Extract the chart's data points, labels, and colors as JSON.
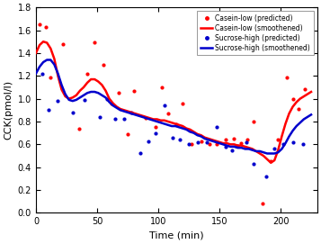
{
  "title": "",
  "xlabel": "Time (min)",
  "ylabel": "CCK(pmol/l)",
  "xlim": [
    0,
    230
  ],
  "ylim": [
    0,
    1.8
  ],
  "yticks": [
    0,
    0.2,
    0.4,
    0.6,
    0.8,
    1.0,
    1.2,
    1.4,
    1.6,
    1.8
  ],
  "xticks": [
    0,
    50,
    100,
    150,
    200
  ],
  "red_smooth_x": [
    0,
    3,
    6,
    9,
    12,
    15,
    18,
    21,
    24,
    27,
    30,
    33,
    36,
    39,
    42,
    45,
    48,
    51,
    54,
    57,
    60,
    63,
    66,
    69,
    72,
    75,
    78,
    81,
    84,
    87,
    90,
    93,
    96,
    99,
    102,
    105,
    108,
    111,
    114,
    117,
    120,
    123,
    126,
    129,
    132,
    135,
    138,
    141,
    144,
    147,
    150,
    153,
    156,
    159,
    162,
    165,
    168,
    171,
    174,
    177,
    180,
    183,
    186,
    189,
    192,
    195,
    198,
    201,
    204,
    207,
    210,
    213,
    216,
    219,
    222,
    225
  ],
  "red_smooth_y": [
    1.4,
    1.47,
    1.5,
    1.49,
    1.44,
    1.35,
    1.2,
    1.08,
    1.02,
    1.0,
    1.01,
    1.03,
    1.07,
    1.1,
    1.14,
    1.17,
    1.17,
    1.15,
    1.12,
    1.07,
    1.0,
    0.96,
    0.93,
    0.91,
    0.9,
    0.89,
    0.88,
    0.87,
    0.86,
    0.85,
    0.84,
    0.83,
    0.82,
    0.82,
    0.81,
    0.81,
    0.8,
    0.79,
    0.78,
    0.77,
    0.76,
    0.74,
    0.73,
    0.71,
    0.69,
    0.68,
    0.66,
    0.65,
    0.64,
    0.63,
    0.62,
    0.61,
    0.61,
    0.6,
    0.6,
    0.59,
    0.59,
    0.58,
    0.57,
    0.56,
    0.54,
    0.52,
    0.5,
    0.47,
    0.44,
    0.46,
    0.55,
    0.67,
    0.78,
    0.87,
    0.93,
    0.97,
    1.0,
    1.02,
    1.04,
    1.06
  ],
  "blue_smooth_x": [
    0,
    3,
    6,
    9,
    12,
    15,
    18,
    21,
    24,
    27,
    30,
    33,
    36,
    39,
    42,
    45,
    48,
    51,
    54,
    57,
    60,
    63,
    66,
    69,
    72,
    75,
    78,
    81,
    84,
    87,
    90,
    93,
    96,
    99,
    102,
    105,
    108,
    111,
    114,
    117,
    120,
    123,
    126,
    129,
    132,
    135,
    138,
    141,
    144,
    147,
    150,
    153,
    156,
    159,
    162,
    165,
    168,
    171,
    174,
    177,
    180,
    183,
    186,
    189,
    192,
    195,
    198,
    201,
    204,
    207,
    210,
    213,
    216,
    219,
    222,
    225
  ],
  "blue_smooth_y": [
    1.22,
    1.28,
    1.32,
    1.34,
    1.34,
    1.3,
    1.22,
    1.12,
    1.04,
    0.99,
    0.98,
    0.99,
    1.01,
    1.03,
    1.05,
    1.06,
    1.06,
    1.05,
    1.03,
    1.01,
    0.97,
    0.94,
    0.92,
    0.9,
    0.89,
    0.88,
    0.87,
    0.86,
    0.85,
    0.84,
    0.83,
    0.82,
    0.81,
    0.8,
    0.79,
    0.78,
    0.77,
    0.76,
    0.76,
    0.75,
    0.74,
    0.73,
    0.71,
    0.7,
    0.68,
    0.67,
    0.65,
    0.64,
    0.63,
    0.62,
    0.61,
    0.6,
    0.59,
    0.58,
    0.58,
    0.57,
    0.57,
    0.56,
    0.56,
    0.55,
    0.54,
    0.54,
    0.53,
    0.52,
    0.52,
    0.52,
    0.53,
    0.56,
    0.61,
    0.67,
    0.72,
    0.76,
    0.79,
    0.82,
    0.84,
    0.86
  ],
  "red_scatter_x": [
    3,
    8,
    12,
    22,
    35,
    42,
    48,
    55,
    62,
    68,
    75,
    80,
    90,
    98,
    103,
    108,
    115,
    120,
    127,
    135,
    142,
    148,
    155,
    162,
    168,
    173,
    178,
    185,
    192,
    198,
    205,
    210,
    215,
    220
  ],
  "red_scatter_y": [
    1.65,
    1.63,
    1.19,
    1.48,
    0.74,
    1.22,
    1.49,
    1.3,
    0.96,
    1.05,
    0.69,
    1.07,
    0.83,
    0.75,
    1.1,
    0.87,
    0.78,
    0.96,
    0.6,
    0.63,
    0.6,
    0.6,
    0.64,
    0.65,
    0.61,
    0.64,
    0.8,
    0.08,
    0.45,
    0.64,
    1.19,
    1.0,
    0.91,
    1.08
  ],
  "blue_scatter_x": [
    5,
    10,
    18,
    30,
    40,
    52,
    58,
    65,
    72,
    78,
    85,
    92,
    98,
    105,
    112,
    118,
    125,
    132,
    140,
    148,
    155,
    160,
    165,
    172,
    178,
    188,
    195,
    202,
    210,
    218
  ],
  "blue_scatter_y": [
    1.22,
    0.9,
    0.98,
    0.88,
    0.99,
    0.84,
    1.0,
    0.82,
    0.82,
    0.88,
    0.52,
    0.63,
    0.7,
    0.94,
    0.66,
    0.64,
    0.6,
    0.62,
    0.62,
    0.75,
    0.58,
    0.55,
    0.59,
    0.62,
    0.43,
    0.32,
    0.56,
    0.6,
    0.62,
    0.6
  ],
  "red_color": "#ff0000",
  "blue_color": "#0000cc",
  "legend_labels": [
    "Casein-low (predicted)",
    "Casein-low (smoothened)",
    "Sucrose-high (predicted)",
    "Sucrose-high (smoothened)"
  ],
  "background_color": "#ffffff",
  "line_width": 1.8
}
